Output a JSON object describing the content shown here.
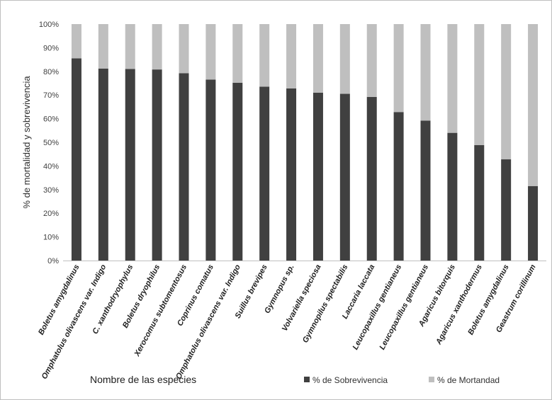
{
  "chart_data": {
    "type": "bar",
    "stacked": true,
    "percent_stacked": true,
    "title": "",
    "xlabel": "Nombre de las especies",
    "ylabel": "% de mortalidad y sobrevivencia",
    "ylim": [
      0,
      100
    ],
    "yticks": [
      "0%",
      "10%",
      "20%",
      "30%",
      "40%",
      "50%",
      "60%",
      "70%",
      "80%",
      "90%",
      "100%"
    ],
    "grid": false,
    "legend_position": "bottom-right",
    "categories": [
      "Boletus amygdalinus",
      "Omphatolus olivascens var. Indigo",
      "C. xanthodryophylus",
      "Boletus dryophilus",
      "Xerocomus subtomentosus",
      "Coprinus comatus",
      "Omphatolus olivascens var. Indigo",
      "Suillus brevipes",
      "Gymnopus sp.",
      "Volvariella speciosa",
      "Gymnopilus spectabilis",
      "Laccaria laccata",
      "Leucopaxillus gentianeus",
      "Leucopaxillus gentianeus",
      "Agaricus bitorquis",
      "Agaricus xanthodermus",
      "Boletus amygdalinus",
      "Geastrum corillinum"
    ],
    "series": [
      {
        "name": "% de Sobrevivencia",
        "color": "#404040",
        "values": [
          85.5,
          81.2,
          81.0,
          80.8,
          79.2,
          76.5,
          75.2,
          73.5,
          72.8,
          71.0,
          70.5,
          69.2,
          62.8,
          59.2,
          54.0,
          48.8,
          42.8,
          31.5
        ]
      },
      {
        "name": "% de Mortandad",
        "color": "#bfbfbf",
        "values": [
          14.5,
          18.8,
          19.0,
          19.2,
          20.8,
          23.5,
          24.8,
          26.5,
          27.2,
          29.0,
          29.5,
          30.8,
          37.2,
          40.8,
          46.0,
          51.2,
          57.2,
          68.5
        ]
      }
    ]
  }
}
